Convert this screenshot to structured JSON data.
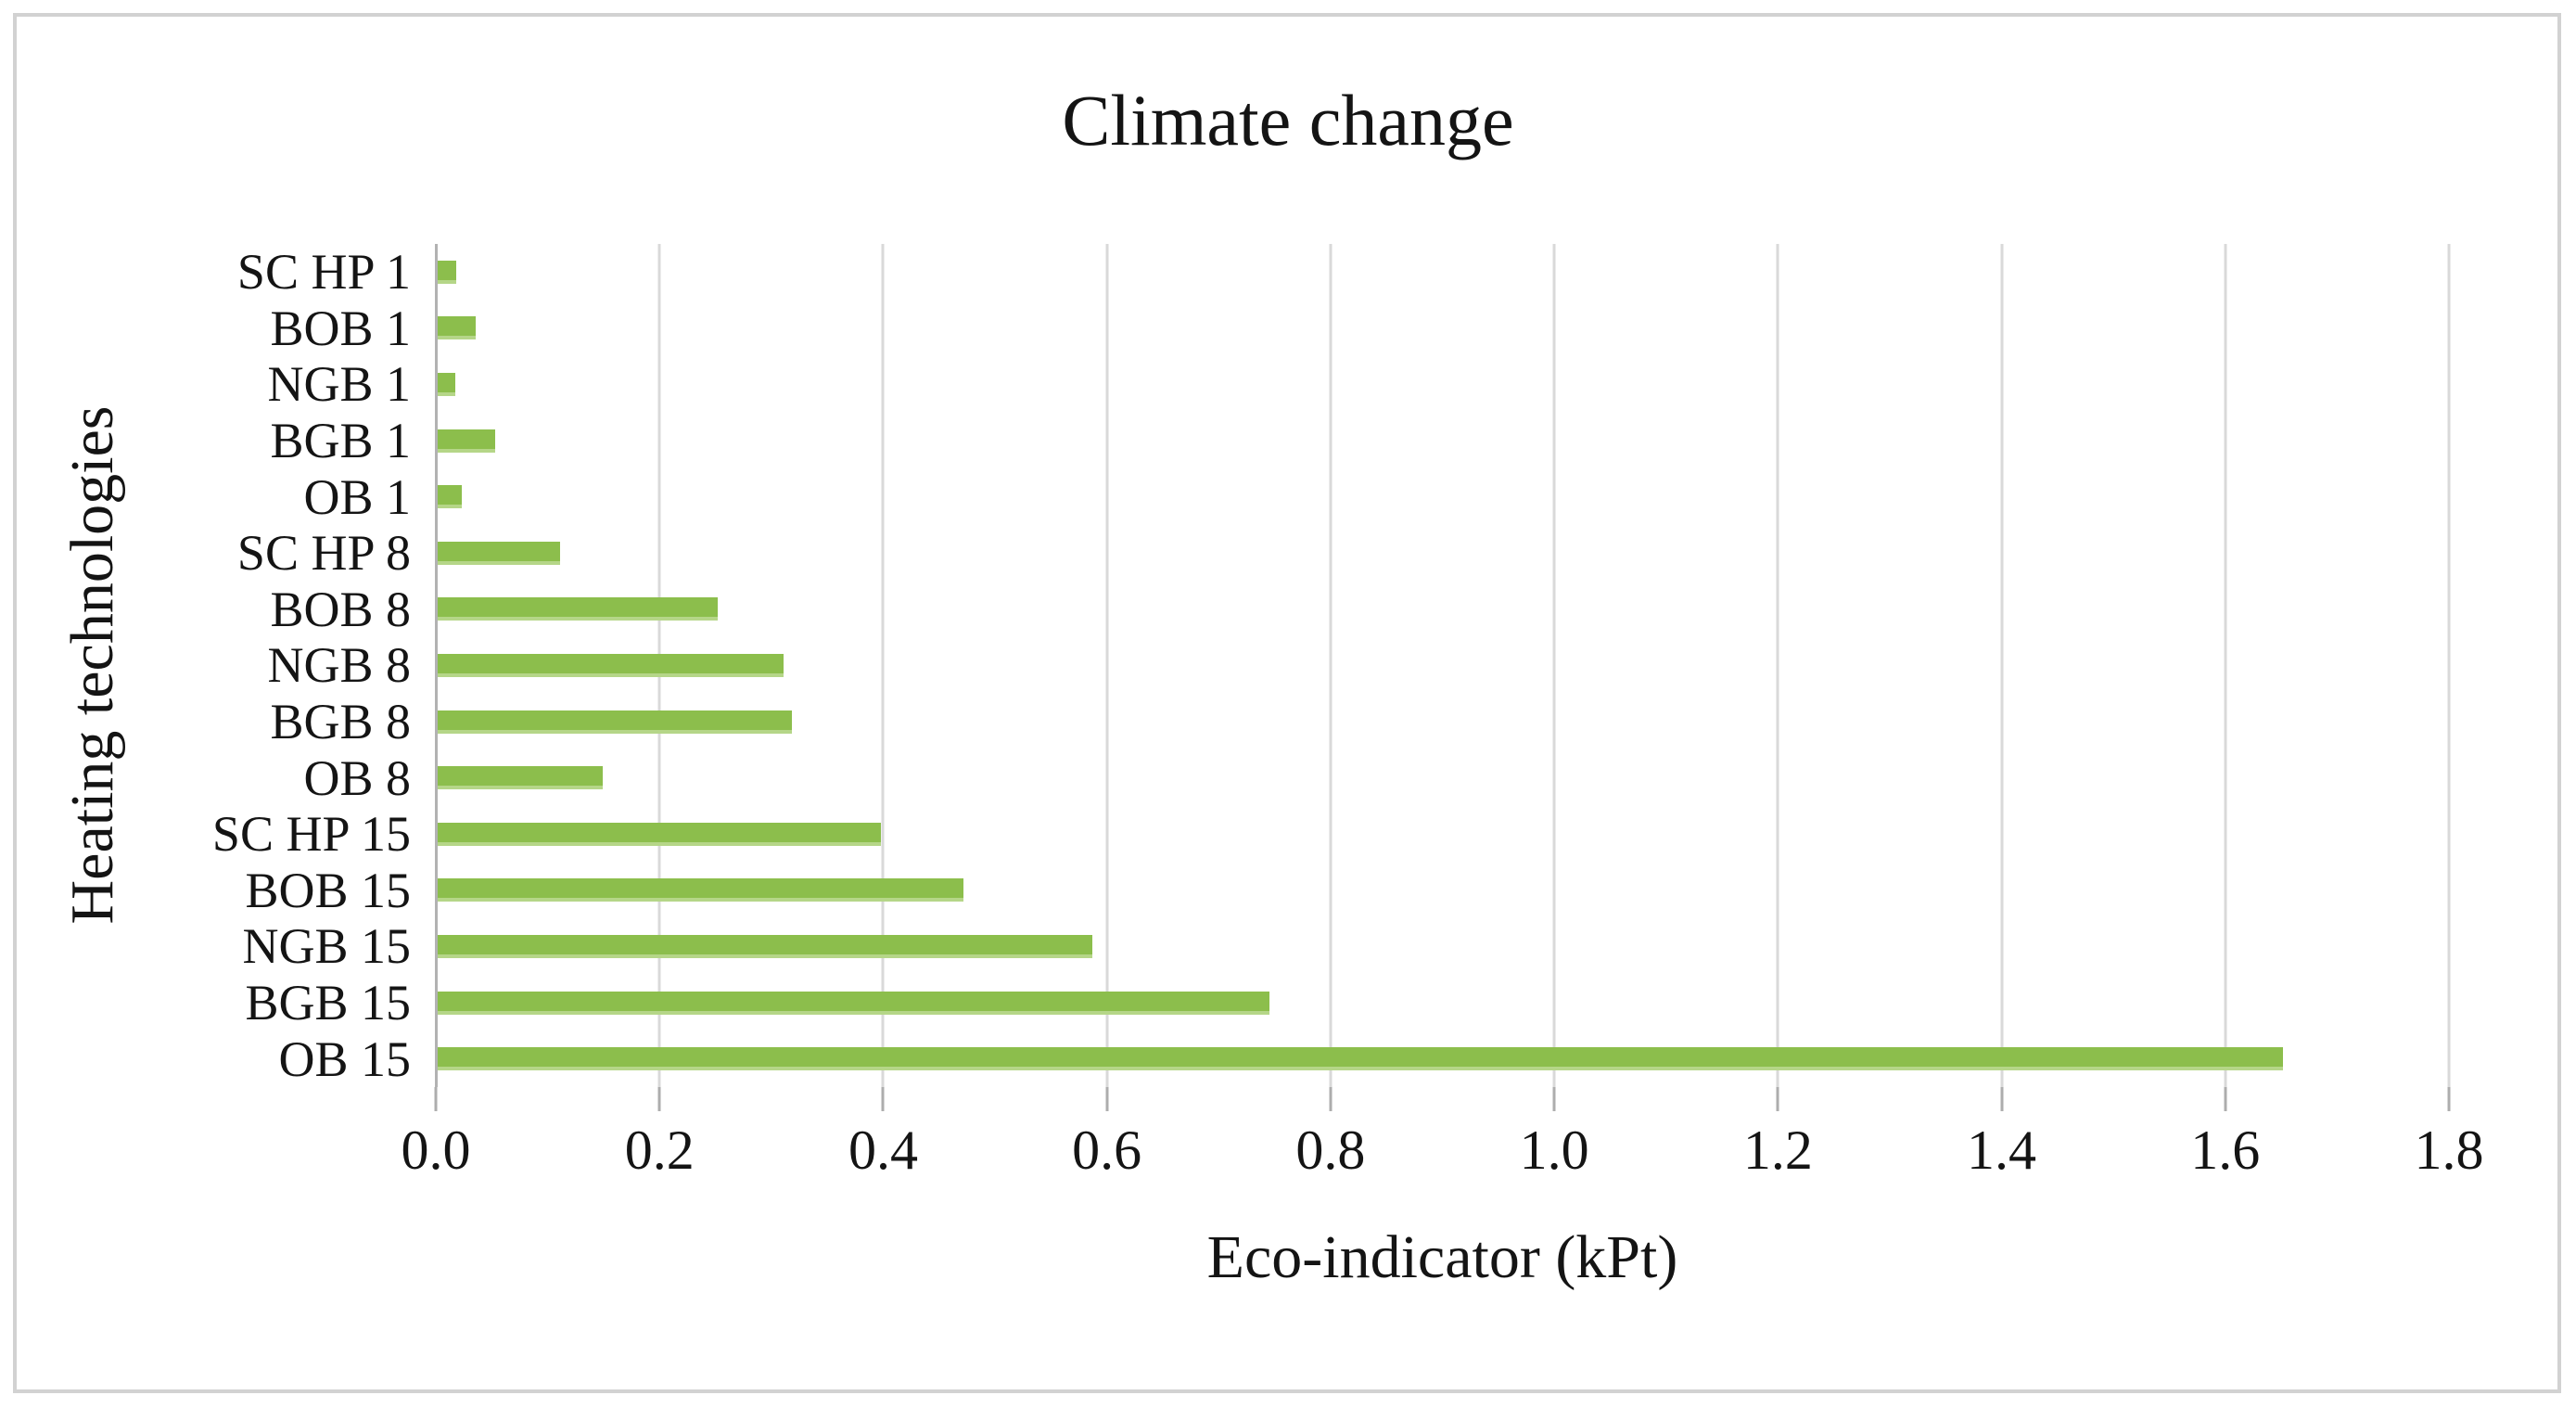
{
  "figure": {
    "title": "Climate change",
    "x_axis_title": "Eco-indicator (kPt)",
    "y_axis_title": "Heating technologies"
  },
  "chart_data": {
    "type": "bar",
    "orientation": "horizontal",
    "title": "Climate change",
    "xlabel": "Eco-indicator (kPt)",
    "ylabel": "Heating technologies",
    "categories": [
      "SC HP 1",
      "BOB 1",
      "NGB 1",
      "BGB 1",
      "OB 1",
      "SC HP 8",
      "BOB 8",
      "NGB 8",
      "BGB 8",
      "OB 8",
      "SC HP 15",
      "BOB 15",
      "NGB 15",
      "BGB 15",
      "OB 15"
    ],
    "values": [
      0.018,
      0.036,
      0.017,
      0.053,
      0.023,
      0.111,
      0.252,
      0.311,
      0.318,
      0.149,
      0.398,
      0.472,
      0.587,
      0.745,
      1.652
    ],
    "xlim": [
      0.0,
      1.8
    ],
    "x_ticks": [
      "0.0",
      "0.2",
      "0.4",
      "0.6",
      "0.8",
      "1.0",
      "1.2",
      "1.4",
      "1.6",
      "1.8"
    ],
    "grid": true,
    "legend": "none",
    "colors": {
      "bar": "#8cbe4c",
      "bar_bottom_edge": "#b5d688",
      "gridline": "#d9d9d9",
      "axis_line": "#b2b2b2",
      "tick_mark": "#adadad",
      "text": "#141414",
      "figure_border": "#d2d2d2",
      "background": "#ffffff"
    }
  }
}
